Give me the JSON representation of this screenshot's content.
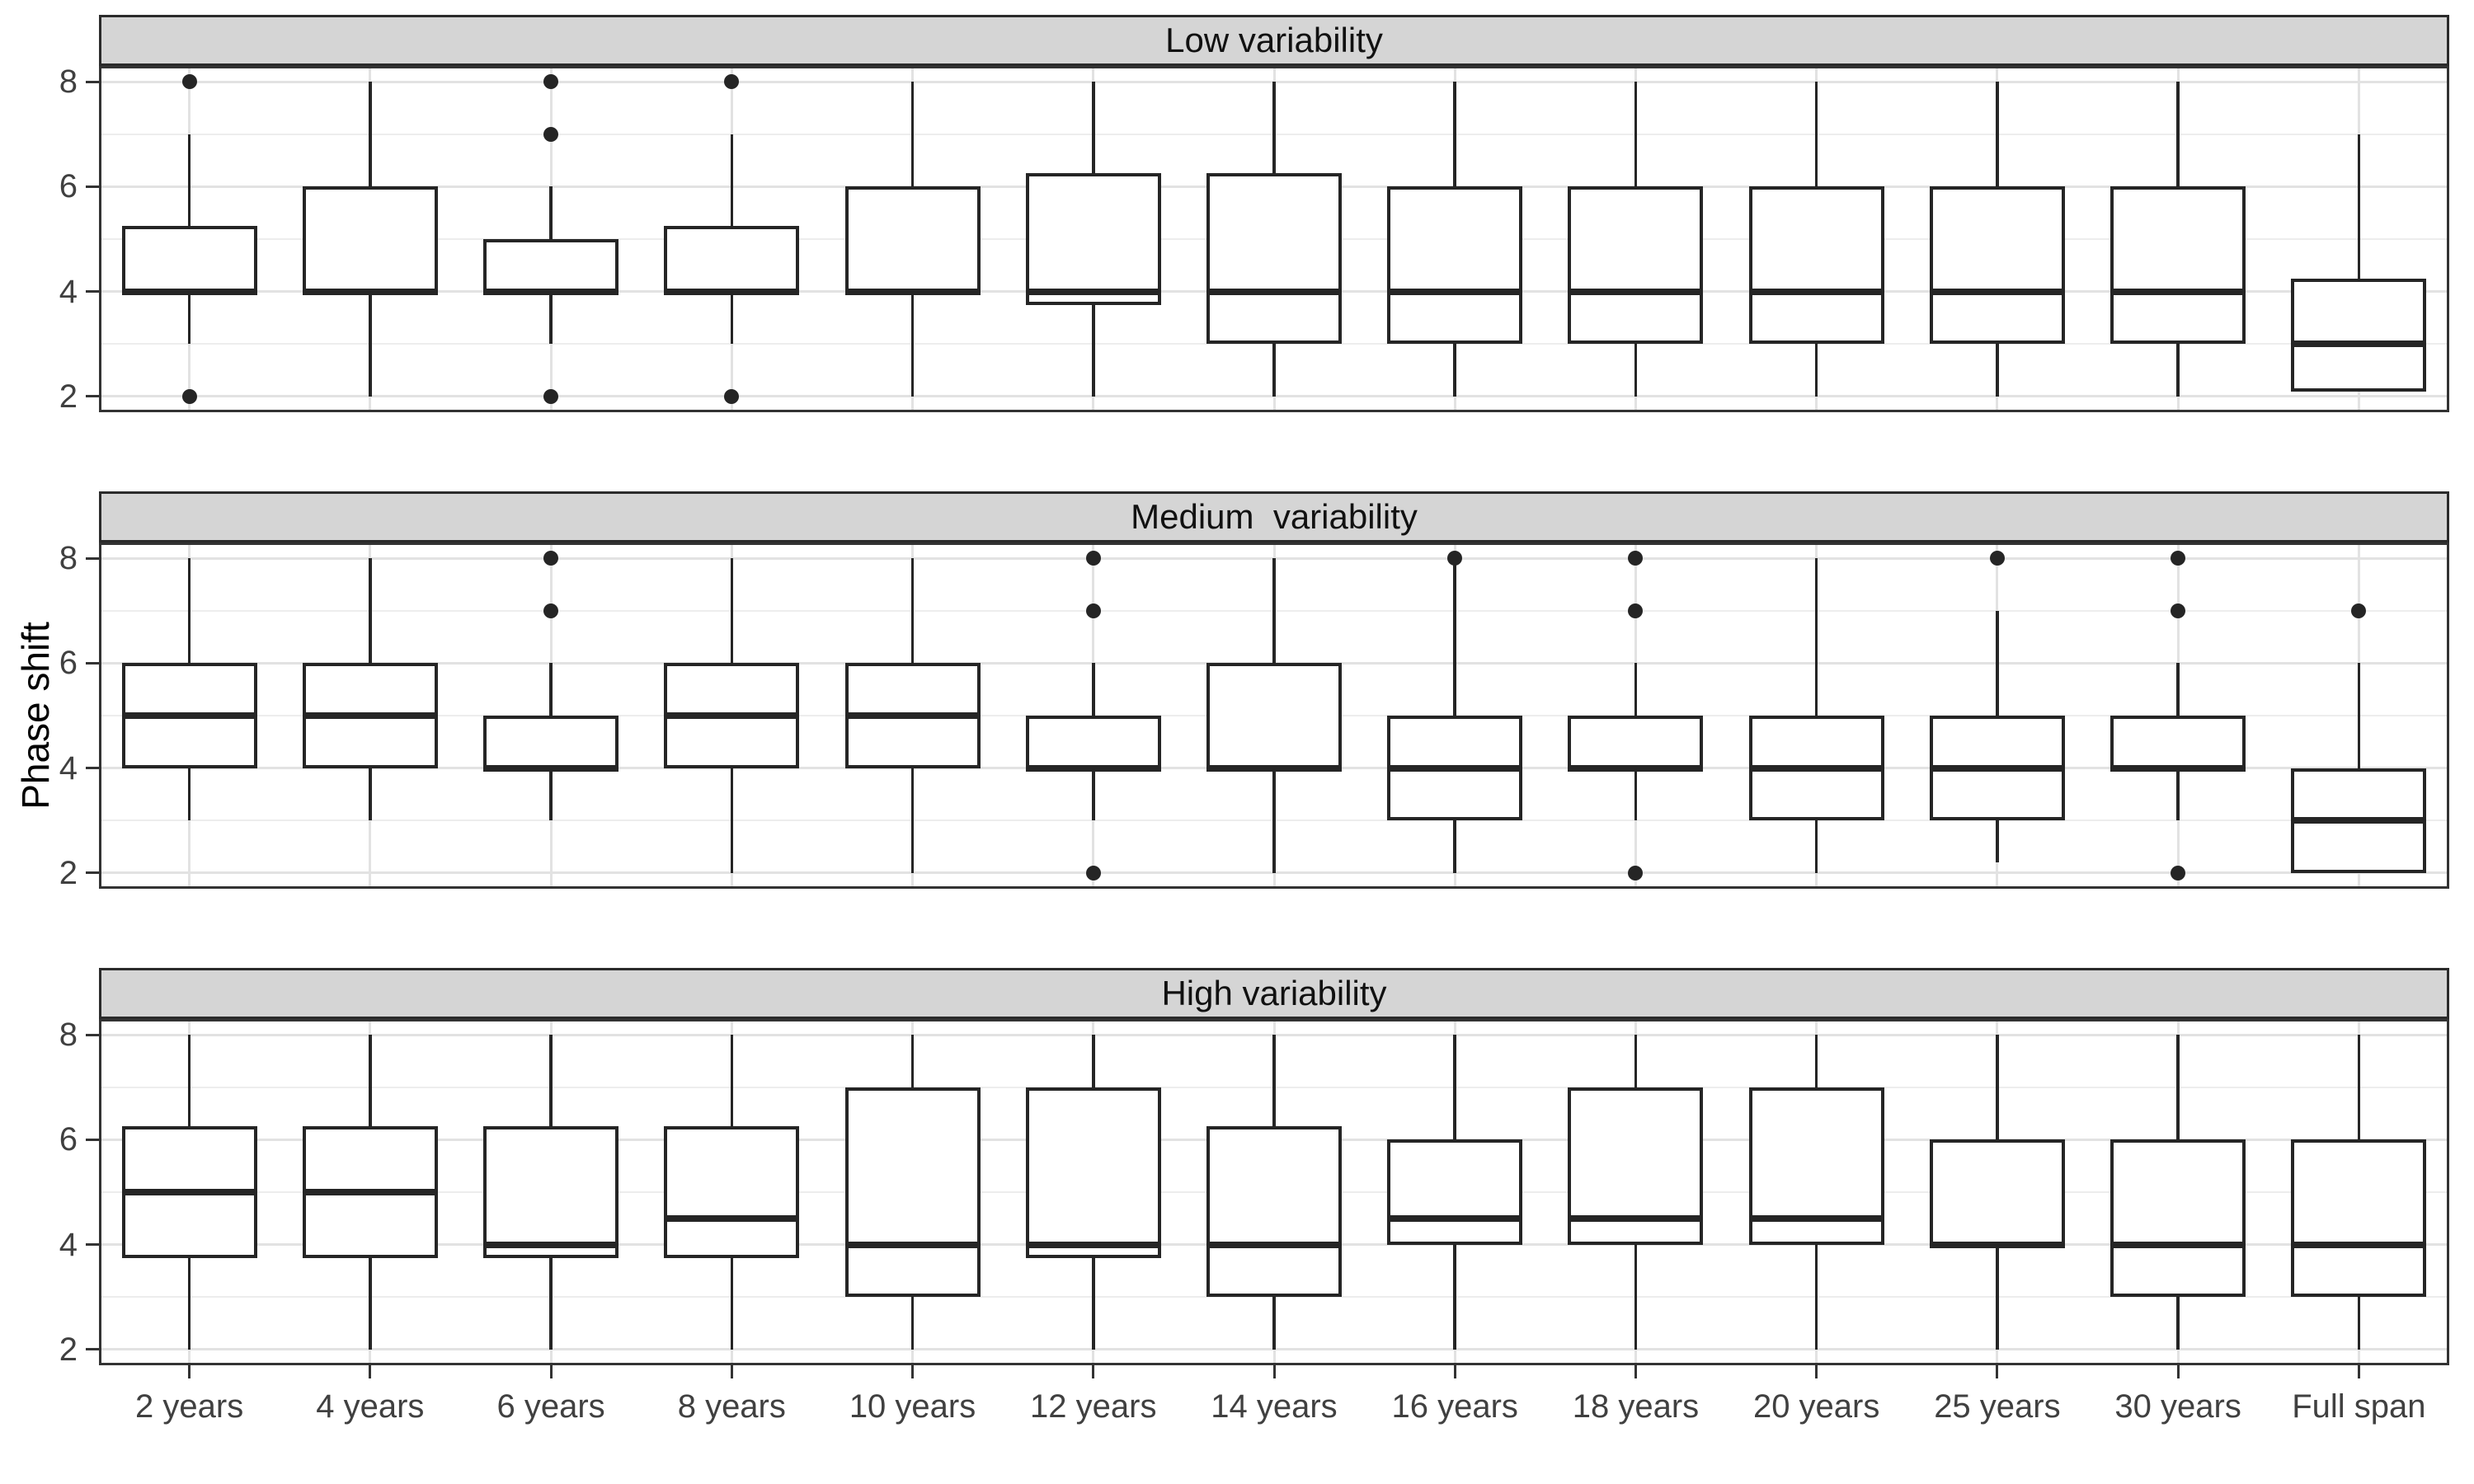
{
  "chart_data": {
    "type": "boxplot",
    "title": "",
    "xlabel": "",
    "ylabel": "Phase shift",
    "ylim": [
      1.7,
      8.3
    ],
    "y_major_ticks": [
      2,
      4,
      6,
      8
    ],
    "y_minor_gridlines": [
      3,
      5,
      7
    ],
    "grid": true,
    "legend_position": "none",
    "facet_layout": "rows",
    "categories": [
      "2 years",
      "4 years",
      "6 years",
      "8 years",
      "10 years",
      "12 years",
      "14 years",
      "16 years",
      "18 years",
      "20 years",
      "25 years",
      "30 years",
      "Full span"
    ],
    "facets": [
      {
        "label": "Low variability",
        "boxes": [
          {
            "category": "2 years",
            "whisker_low": 3,
            "q1": 4,
            "median": 4,
            "q3": 5.25,
            "whisker_high": 7,
            "outliers": [
              8,
              2
            ]
          },
          {
            "category": "4 years",
            "whisker_low": 2,
            "q1": 4,
            "median": 4,
            "q3": 6,
            "whisker_high": 8,
            "outliers": []
          },
          {
            "category": "6 years",
            "whisker_low": 3,
            "q1": 4,
            "median": 4,
            "q3": 5,
            "whisker_high": 6,
            "outliers": [
              8,
              7,
              2
            ]
          },
          {
            "category": "8 years",
            "whisker_low": 3,
            "q1": 4,
            "median": 4,
            "q3": 5.25,
            "whisker_high": 7,
            "outliers": [
              8,
              2
            ]
          },
          {
            "category": "10 years",
            "whisker_low": 2,
            "q1": 4,
            "median": 4,
            "q3": 6,
            "whisker_high": 8,
            "outliers": []
          },
          {
            "category": "12 years",
            "whisker_low": 2,
            "q1": 3.75,
            "median": 4,
            "q3": 6.25,
            "whisker_high": 8,
            "outliers": []
          },
          {
            "category": "14 years",
            "whisker_low": 2,
            "q1": 3,
            "median": 4,
            "q3": 6.25,
            "whisker_high": 8,
            "outliers": []
          },
          {
            "category": "16 years",
            "whisker_low": 2,
            "q1": 3,
            "median": 4,
            "q3": 6,
            "whisker_high": 8,
            "outliers": []
          },
          {
            "category": "18 years",
            "whisker_low": 2,
            "q1": 3,
            "median": 4,
            "q3": 6,
            "whisker_high": 8,
            "outliers": []
          },
          {
            "category": "20 years",
            "whisker_low": 2,
            "q1": 3,
            "median": 4,
            "q3": 6,
            "whisker_high": 8,
            "outliers": []
          },
          {
            "category": "25 years",
            "whisker_low": 2,
            "q1": 3,
            "median": 4,
            "q3": 6,
            "whisker_high": 8,
            "outliers": []
          },
          {
            "category": "30 years",
            "whisker_low": 2,
            "q1": 3,
            "median": 4,
            "q3": 6,
            "whisker_high": 8,
            "outliers": []
          },
          {
            "category": "Full span",
            "whisker_low": null,
            "q1": 2.1,
            "median": 3,
            "q3": 4.25,
            "whisker_high": 7,
            "outliers": []
          }
        ]
      },
      {
        "label": "Medium  variability",
        "boxes": [
          {
            "category": "2 years",
            "whisker_low": 3,
            "q1": 4,
            "median": 5,
            "q3": 6,
            "whisker_high": 8,
            "outliers": []
          },
          {
            "category": "4 years",
            "whisker_low": 3,
            "q1": 4,
            "median": 5,
            "q3": 6,
            "whisker_high": 8,
            "outliers": []
          },
          {
            "category": "6 years",
            "whisker_low": 3,
            "q1": 4,
            "median": 4,
            "q3": 5,
            "whisker_high": 6,
            "outliers": [
              8,
              7
            ]
          },
          {
            "category": "8 years",
            "whisker_low": 2,
            "q1": 4,
            "median": 5,
            "q3": 6,
            "whisker_high": 8,
            "outliers": []
          },
          {
            "category": "10 years",
            "whisker_low": 2,
            "q1": 4,
            "median": 5,
            "q3": 6,
            "whisker_high": 8,
            "outliers": []
          },
          {
            "category": "12 years",
            "whisker_low": 3,
            "q1": 4,
            "median": 4,
            "q3": 5,
            "whisker_high": 6,
            "outliers": [
              8,
              7,
              2
            ]
          },
          {
            "category": "14 years",
            "whisker_low": 2,
            "q1": 4,
            "median": 4,
            "q3": 6,
            "whisker_high": 8,
            "outliers": []
          },
          {
            "category": "16 years",
            "whisker_low": 2,
            "q1": 3,
            "median": 4,
            "q3": 5,
            "whisker_high": 7.95,
            "outliers": [
              8
            ]
          },
          {
            "category": "18 years",
            "whisker_low": 3,
            "q1": 4,
            "median": 4,
            "q3": 5,
            "whisker_high": 6,
            "outliers": [
              8,
              7,
              2
            ]
          },
          {
            "category": "20 years",
            "whisker_low": 2,
            "q1": 3,
            "median": 4,
            "q3": 5,
            "whisker_high": 8,
            "outliers": []
          },
          {
            "category": "25 years",
            "whisker_low": 2.2,
            "q1": 3,
            "median": 4,
            "q3": 5,
            "whisker_high": 7,
            "outliers": [
              8
            ]
          },
          {
            "category": "30 years",
            "whisker_low": 3,
            "q1": 4,
            "median": 4,
            "q3": 5,
            "whisker_high": 6,
            "outliers": [
              8,
              7,
              2
            ]
          },
          {
            "category": "Full span",
            "whisker_low": null,
            "q1": 2,
            "median": 3,
            "q3": 4,
            "whisker_high": 6,
            "outliers": [
              7
            ]
          }
        ]
      },
      {
        "label": "High variability",
        "boxes": [
          {
            "category": "2 years",
            "whisker_low": 2,
            "q1": 3.75,
            "median": 5,
            "q3": 6.25,
            "whisker_high": 8,
            "outliers": []
          },
          {
            "category": "4 years",
            "whisker_low": 2,
            "q1": 3.75,
            "median": 5,
            "q3": 6.25,
            "whisker_high": 8,
            "outliers": []
          },
          {
            "category": "6 years",
            "whisker_low": 2,
            "q1": 3.75,
            "median": 4,
            "q3": 6.25,
            "whisker_high": 8,
            "outliers": []
          },
          {
            "category": "8 years",
            "whisker_low": 2,
            "q1": 3.75,
            "median": 4.5,
            "q3": 6.25,
            "whisker_high": 8,
            "outliers": []
          },
          {
            "category": "10 years",
            "whisker_low": 2,
            "q1": 3,
            "median": 4,
            "q3": 7,
            "whisker_high": 8,
            "outliers": []
          },
          {
            "category": "12 years",
            "whisker_low": 2,
            "q1": 3.75,
            "median": 4,
            "q3": 7,
            "whisker_high": 8,
            "outliers": []
          },
          {
            "category": "14 years",
            "whisker_low": 2,
            "q1": 3,
            "median": 4,
            "q3": 6.25,
            "whisker_high": 8,
            "outliers": []
          },
          {
            "category": "16 years",
            "whisker_low": 2,
            "q1": 4,
            "median": 4.5,
            "q3": 6,
            "whisker_high": 8,
            "outliers": []
          },
          {
            "category": "18 years",
            "whisker_low": 2,
            "q1": 4,
            "median": 4.5,
            "q3": 7,
            "whisker_high": 8,
            "outliers": []
          },
          {
            "category": "20 years",
            "whisker_low": 2,
            "q1": 4,
            "median": 4.5,
            "q3": 7,
            "whisker_high": 8,
            "outliers": []
          },
          {
            "category": "25 years",
            "whisker_low": 2,
            "q1": 4,
            "median": 4,
            "q3": 6,
            "whisker_high": 8,
            "outliers": []
          },
          {
            "category": "30 years",
            "whisker_low": 2,
            "q1": 3,
            "median": 4,
            "q3": 6,
            "whisker_high": 8,
            "outliers": []
          },
          {
            "category": "Full span",
            "whisker_low": 2,
            "q1": 3,
            "median": 4,
            "q3": 6,
            "whisker_high": 8,
            "outliers": []
          }
        ]
      }
    ],
    "colors": {
      "box_stroke": "#252525",
      "box_fill": "#ffffff",
      "outlier": "#252525",
      "panel_border": "#333333",
      "strip_background": "#d5d5d5",
      "strip_border": "#2b2b2b",
      "gridline_major": "#e2e2e2",
      "gridline_minor": "#ededed",
      "axis_text": "#404040",
      "tick_mark": "#333333",
      "background": "#ffffff"
    }
  }
}
